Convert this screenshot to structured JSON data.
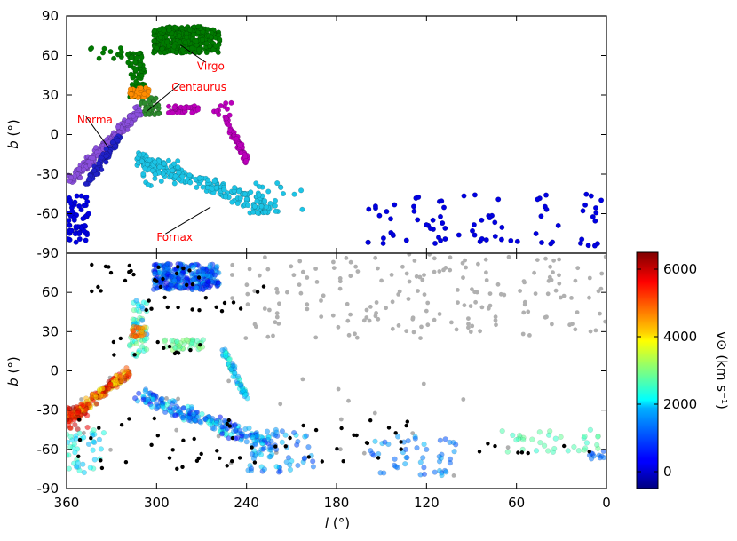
{
  "chart_data": [
    {
      "type": "scatter",
      "panel": "top",
      "xlim": [
        360,
        0
      ],
      "ylim": [
        -90,
        90
      ],
      "xlabel": "",
      "ylabel_sym": "b",
      "ylabel_unit": "(°)",
      "yticks": [
        90,
        60,
        30,
        0,
        -30,
        -60,
        -90
      ],
      "grid": false,
      "colors": {
        "Virgo": "#007a00",
        "Centaurus": "#ff8c00",
        "Centaurus-Crux": "#2e8b2e",
        "Norma": "#8a4fdc",
        "Norma-blue": "#2020c8",
        "Fornax": "#1cc4e6",
        "magenta": "#bb00bb",
        "far": "#0000e0"
      },
      "annotations": [
        {
          "text": "Virgo",
          "x": 273,
          "y": 52,
          "arrow_to": [
            284,
            68
          ]
        },
        {
          "text": "Centaurus",
          "x": 290,
          "y": 36,
          "arrow_to": [
            306,
            18
          ]
        },
        {
          "text": "Norma",
          "x": 353,
          "y": 11,
          "arrow_to": [
            332,
            -10
          ]
        },
        {
          "text": "Fornax",
          "x": 300,
          "y": -78,
          "arrow_to": [
            264,
            -55
          ]
        }
      ],
      "clusters": [
        {
          "name": "Virgo",
          "color": "Virgo",
          "n": 360,
          "lmin": 258,
          "lmax": 302,
          "bmin": 62,
          "bmax": 82
        },
        {
          "name": "Virgo-spine",
          "color": "Virgo",
          "n": 70,
          "lmin": 308,
          "lmax": 318,
          "bmin": 28,
          "bmax": 62
        },
        {
          "name": "Virgo-loose",
          "color": "Virgo",
          "n": 14,
          "lmin": 318,
          "lmax": 345,
          "bmin": 54,
          "bmax": 66
        },
        {
          "name": "Centaurus",
          "color": "Centaurus",
          "n": 40,
          "lmin": 305,
          "lmax": 318,
          "bmin": 28,
          "bmax": 36
        },
        {
          "name": "Centaurus-Crux",
          "color": "Centaurus-Crux",
          "n": 40,
          "lmin": 298,
          "lmax": 312,
          "bmin": 15,
          "bmax": 28
        },
        {
          "name": "Norma",
          "color": "Norma",
          "n": 220,
          "band": {
            "l0": 358,
            "b0": -36,
            "l1": 312,
            "b1": 18
          },
          "width": 5
        },
        {
          "name": "Norma-blue",
          "color": "Norma-blue",
          "n": 90,
          "band": {
            "l0": 346,
            "b0": -36,
            "l1": 325,
            "b1": -2
          },
          "width": 4
        },
        {
          "name": "Magenta-a",
          "color": "magenta",
          "n": 35,
          "lmin": 272,
          "lmax": 292,
          "bmin": 16,
          "bmax": 22
        },
        {
          "name": "Magenta-b",
          "color": "magenta",
          "n": 60,
          "band": {
            "l0": 255,
            "b0": 15,
            "l1": 240,
            "b1": -20
          },
          "width": 3
        },
        {
          "name": "Magenta-c",
          "color": "magenta",
          "n": 10,
          "lmin": 250,
          "lmax": 262,
          "bmin": 14,
          "bmax": 28
        },
        {
          "name": "Fornax",
          "color": "Fornax",
          "n": 190,
          "band": {
            "l0": 312,
            "b0": -18,
            "l1": 222,
            "b1": -58
          },
          "width": 8
        },
        {
          "name": "Fornax-ext",
          "color": "Fornax",
          "n": 30,
          "lmin": 200,
          "lmax": 240,
          "bmin": -60,
          "bmax": -35
        },
        {
          "name": "Fornax-loose",
          "color": "Fornax",
          "n": 30,
          "lmin": 285,
          "lmax": 312,
          "bmin": -40,
          "bmax": -18
        },
        {
          "name": "Far-left",
          "color": "far",
          "n": 60,
          "lmin": 345,
          "lmax": 360,
          "bmin": -82,
          "bmax": -45
        },
        {
          "name": "Far-right",
          "color": "far",
          "n": 80,
          "lmin": 0,
          "lmax": 160,
          "bmin": -85,
          "bmax": -45
        }
      ]
    },
    {
      "type": "scatter",
      "panel": "bottom",
      "xlim": [
        360,
        0
      ],
      "ylim": [
        -90,
        90
      ],
      "xlabel_sym": "l",
      "xlabel_unit": "(°)",
      "ylabel_sym": "b",
      "ylabel_unit": "(°)",
      "xticks": [
        360,
        300,
        240,
        180,
        120,
        60,
        0
      ],
      "yticks": [
        60,
        30,
        0,
        -30,
        -60,
        -90
      ],
      "grid": false,
      "colorbar": {
        "label": "v⊙ (km s⁻¹)",
        "vmin": -500,
        "vmax": 6500,
        "ticks": [
          0,
          2000,
          4000,
          6000
        ],
        "colormap": "jet"
      },
      "point_colors": {
        "black": "#000000",
        "gray": "#b0b0b0"
      },
      "clusters": [
        {
          "name": "Virgo-v",
          "n": 300,
          "lmin": 258,
          "lmax": 302,
          "bmin": 62,
          "bmax": 82,
          "vmin": 200,
          "vmax": 1700
        },
        {
          "name": "spine-v",
          "n": 60,
          "lmin": 306,
          "lmax": 318,
          "bmin": 10,
          "bmax": 55,
          "vmin": 1200,
          "vmax": 3200
        },
        {
          "name": "Centaurus-v",
          "n": 25,
          "lmin": 308,
          "lmax": 318,
          "bmin": 26,
          "bmax": 34,
          "vmin": 4200,
          "vmax": 5200
        },
        {
          "name": "Norma-v",
          "n": 200,
          "band": {
            "l0": 358,
            "b0": -36,
            "l1": 318,
            "b1": 0
          },
          "width": 5,
          "vmin": 3800,
          "vmax": 6200
        },
        {
          "name": "Norma-low",
          "n": 30,
          "lmin": 345,
          "lmax": 360,
          "bmin": -45,
          "bmax": -28,
          "vmin": 5200,
          "vmax": 6400
        },
        {
          "name": "Mid-green",
          "n": 40,
          "lmin": 268,
          "lmax": 295,
          "bmin": 16,
          "bmax": 24,
          "vmin": 2500,
          "vmax": 3200
        },
        {
          "name": "Magenta-v",
          "n": 60,
          "band": {
            "l0": 255,
            "b0": 15,
            "l1": 240,
            "b1": -20
          },
          "width": 3,
          "vmin": 1200,
          "vmax": 2600
        },
        {
          "name": "Fornax-v",
          "n": 200,
          "band": {
            "l0": 312,
            "b0": -18,
            "l1": 222,
            "b1": -58
          },
          "width": 8,
          "vmin": 400,
          "vmax": 2400
        },
        {
          "name": "Fornax-ext-v",
          "n": 60,
          "lmin": 195,
          "lmax": 240,
          "bmin": -78,
          "bmax": -45,
          "vmin": 800,
          "vmax": 2000
        },
        {
          "name": "Far-v",
          "n": 50,
          "lmin": 100,
          "lmax": 160,
          "bmin": -80,
          "bmax": -50,
          "vmin": 900,
          "vmax": 1700
        },
        {
          "name": "Right-green",
          "n": 35,
          "lmin": 5,
          "lmax": 70,
          "bmin": -62,
          "bmax": -45,
          "vmin": 2400,
          "vmax": 2900
        },
        {
          "name": "Far-left-v",
          "n": 40,
          "lmin": 335,
          "lmax": 360,
          "bmin": -78,
          "bmax": -45,
          "vmin": 1500,
          "vmax": 2600
        },
        {
          "name": "Right-blue",
          "n": 10,
          "lmin": 0,
          "lmax": 12,
          "bmin": -68,
          "bmax": -60,
          "vmin": 900,
          "vmax": 1300
        }
      ],
      "black_clusters": [
        {
          "name": "bk-upper",
          "n": 40,
          "lmin": 225,
          "lmax": 355,
          "bmin": 45,
          "bmax": 82
        },
        {
          "name": "bk-mid",
          "n": 12,
          "lmin": 270,
          "lmax": 330,
          "bmin": 3,
          "bmax": 25
        },
        {
          "name": "bk-low",
          "n": 55,
          "lmin": 130,
          "lmax": 355,
          "bmin": -75,
          "bmax": -35
        },
        {
          "name": "bk-right",
          "n": 8,
          "lmin": 10,
          "lmax": 100,
          "bmin": -65,
          "bmax": -50
        }
      ],
      "gray_clusters": [
        {
          "name": "gr-upper",
          "n": 190,
          "lmin": 0,
          "lmax": 250,
          "bmin": 25,
          "bmax": 90
        },
        {
          "name": "gr-misc",
          "n": 25,
          "lmin": 60,
          "lmax": 360,
          "bmin": -85,
          "bmax": 0
        }
      ]
    }
  ]
}
